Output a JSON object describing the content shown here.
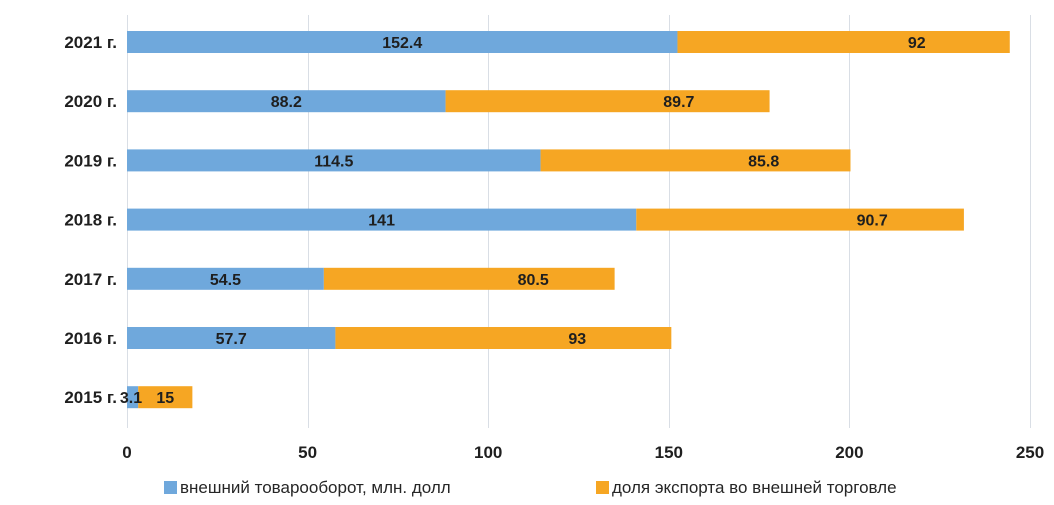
{
  "chart_data": {
    "type": "bar",
    "orientation": "horizontal",
    "stacked": true,
    "categories": [
      "2015 г.",
      "2016 г.",
      "2017 г.",
      "2018 г.",
      "2019 г.",
      "2020 г.",
      "2021 г."
    ],
    "series": [
      {
        "name": "внешний товарооборот, млн. долл",
        "color": "#6fa8dc",
        "values": [
          3.1,
          57.7,
          54.5,
          141,
          114.5,
          88.2,
          152.4
        ],
        "labels": [
          "3.1",
          "57.7",
          "54.5",
          "141",
          "114.5",
          "88.2",
          "152.4"
        ]
      },
      {
        "name": "доля экспорта во внешней торговле",
        "color": "#f6a623",
        "values": [
          15,
          93,
          80.5,
          90.7,
          85.8,
          89.7,
          92
        ],
        "labels": [
          "15",
          "93",
          "80.5",
          "90.7",
          "85.8",
          "89.7",
          "92"
        ]
      }
    ],
    "xlim": [
      0,
      250
    ],
    "x_ticks": [
      0,
      50,
      100,
      150,
      200,
      250
    ],
    "x_tick_labels": [
      "0",
      "50",
      "100",
      "150",
      "200",
      "250"
    ],
    "grid": true,
    "legend_position": "bottom",
    "title": "",
    "xlabel": "",
    "ylabel": ""
  }
}
